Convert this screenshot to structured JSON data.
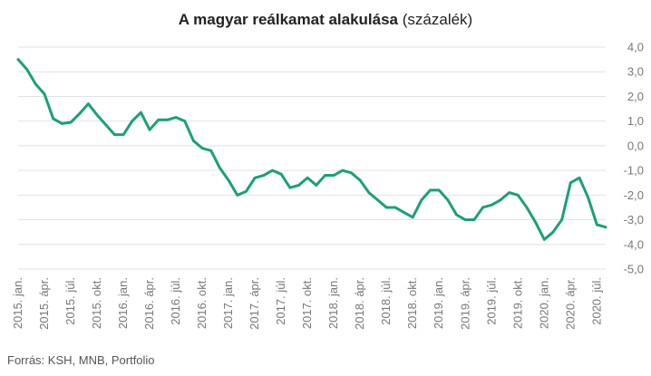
{
  "title": "A magyar reálkamat alakulása",
  "subtitle": "(százalék)",
  "source": "Forrás: KSH, MNB, Portfolio",
  "colors": {
    "line": "#1aa079",
    "grid": "#e2e2e2",
    "text": "#777777"
  },
  "chart_data": {
    "type": "line",
    "title": "A magyar reálkamat alakulása",
    "subtitle": "(százalék)",
    "xlabel": "",
    "ylabel": "",
    "ylim": [
      -5,
      4
    ],
    "yticks": [
      "4,0",
      "3,0",
      "2,0",
      "1,0",
      "0,0",
      "-1,0",
      "-2,0",
      "-3,0",
      "-4,0",
      "-5,0"
    ],
    "y_axis_position": "right",
    "grid": true,
    "x_tick_labels": [
      "2015. jan.",
      "2015. ápr.",
      "2015. júl.",
      "2015. okt.",
      "2016. jan.",
      "2016. ápr.",
      "2016. júl.",
      "2016. okt.",
      "2017. jan.",
      "2017. ápr.",
      "2017. júl.",
      "2017. okt.",
      "2018. jan.",
      "2018. ápr.",
      "2018. júl.",
      "2018. okt.",
      "2019. jan.",
      "2019. ápr.",
      "2019. júl.",
      "2019. okt.",
      "2020. jan.",
      "2020. ápr.",
      "2020. júl."
    ],
    "x": [
      "2015-01",
      "2015-02",
      "2015-03",
      "2015-04",
      "2015-05",
      "2015-06",
      "2015-07",
      "2015-08",
      "2015-09",
      "2015-10",
      "2015-11",
      "2015-12",
      "2016-01",
      "2016-02",
      "2016-03",
      "2016-04",
      "2016-05",
      "2016-06",
      "2016-07",
      "2016-08",
      "2016-09",
      "2016-10",
      "2016-11",
      "2016-12",
      "2017-01",
      "2017-02",
      "2017-03",
      "2017-04",
      "2017-05",
      "2017-06",
      "2017-07",
      "2017-08",
      "2017-09",
      "2017-10",
      "2017-11",
      "2017-12",
      "2018-01",
      "2018-02",
      "2018-03",
      "2018-04",
      "2018-05",
      "2018-06",
      "2018-07",
      "2018-08",
      "2018-09",
      "2018-10",
      "2018-11",
      "2018-12",
      "2019-01",
      "2019-02",
      "2019-03",
      "2019-04",
      "2019-05",
      "2019-06",
      "2019-07",
      "2019-08",
      "2019-09",
      "2019-10",
      "2019-11",
      "2019-12",
      "2020-01",
      "2020-02",
      "2020-03",
      "2020-04",
      "2020-05",
      "2020-06",
      "2020-07",
      "2020-08"
    ],
    "series": [
      {
        "values": [
          3.5,
          3.1,
          2.5,
          2.1,
          1.1,
          0.9,
          0.95,
          1.3,
          1.7,
          1.25,
          0.85,
          0.45,
          0.45,
          1.0,
          1.35,
          0.65,
          1.05,
          1.05,
          1.15,
          1.0,
          0.2,
          -0.1,
          -0.2,
          -0.9,
          -1.4,
          -2.0,
          -1.85,
          -1.3,
          -1.2,
          -1.0,
          -1.15,
          -1.7,
          -1.6,
          -1.3,
          -1.6,
          -1.2,
          -1.2,
          -1.0,
          -1.1,
          -1.4,
          -1.9,
          -2.2,
          -2.5,
          -2.5,
          -2.7,
          -2.9,
          -2.2,
          -1.8,
          -1.8,
          -2.2,
          -2.8,
          -3.0,
          -3.0,
          -2.5,
          -2.4,
          -2.2,
          -1.9,
          -2.0,
          -2.5,
          -3.1,
          -3.8,
          -3.5,
          -3.0,
          -1.5,
          -1.3,
          -2.1,
          -3.2,
          -3.3
        ]
      }
    ]
  }
}
